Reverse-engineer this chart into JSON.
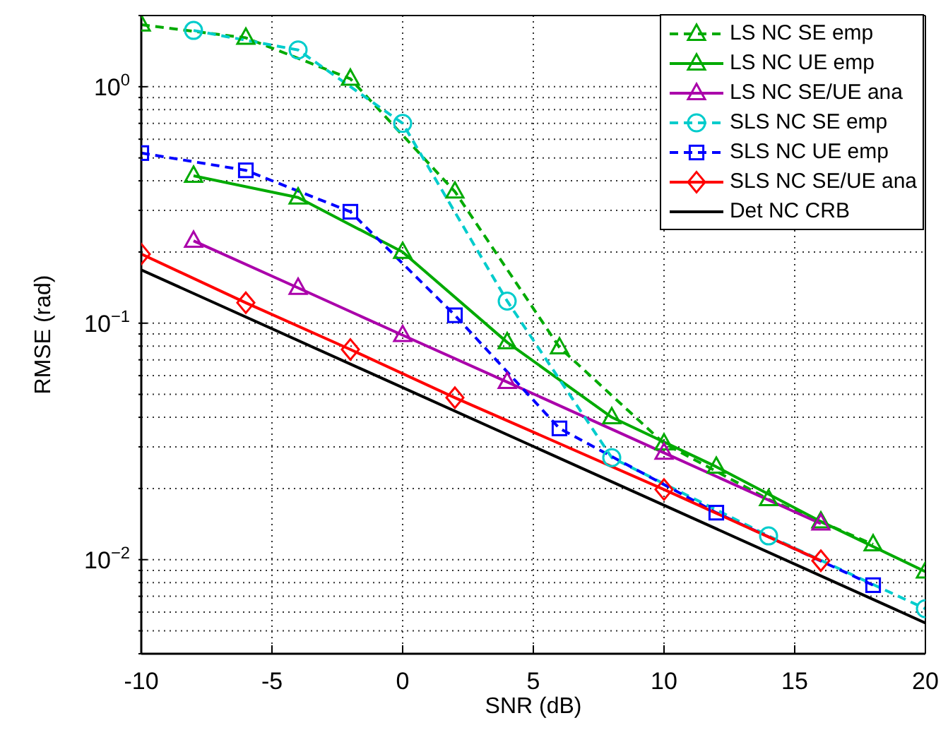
{
  "chart_data": {
    "type": "line",
    "xlabel": "SNR (dB)",
    "ylabel": "RMSE (rad)",
    "log": "y",
    "grid": true,
    "legend": "top right",
    "xlim": [
      -10,
      20
    ],
    "xticks": [
      -10,
      -5,
      0,
      5,
      10,
      15,
      20
    ],
    "ylim": [
      0.004,
      2
    ],
    "yticks": [
      {
        "value": 0.004,
        "label": null
      },
      {
        "value": 0.005,
        "label": null
      },
      {
        "value": 0.006,
        "label": null
      },
      {
        "value": 0.007,
        "label": null
      },
      {
        "value": 0.008,
        "label": null
      },
      {
        "value": 0.009,
        "label": null
      },
      {
        "value": 0.01,
        "label": "10$^{−2}$"
      },
      {
        "value": 0.02,
        "label": null
      },
      {
        "value": 0.03,
        "label": null
      },
      {
        "value": 0.04,
        "label": null
      },
      {
        "value": 0.05,
        "label": null
      },
      {
        "value": 0.06,
        "label": null
      },
      {
        "value": 0.07,
        "label": null
      },
      {
        "value": 0.08,
        "label": null
      },
      {
        "value": 0.09,
        "label": null
      },
      {
        "value": 0.1,
        "label": "10$^{−1}$"
      },
      {
        "value": 0.2,
        "label": null
      },
      {
        "value": 0.3,
        "label": null
      },
      {
        "value": 0.4,
        "label": null
      },
      {
        "value": 0.5,
        "label": null
      },
      {
        "value": 0.6,
        "label": null
      },
      {
        "value": 0.7,
        "label": null
      },
      {
        "value": 0.8,
        "label": null
      },
      {
        "value": 0.9,
        "label": null
      },
      {
        "value": 1,
        "label": "10$^{0}$"
      },
      {
        "value": 2,
        "label": null
      }
    ],
    "series": [
      {
        "name": "LS NC SE emp",
        "color": "#00aa00",
        "line_style": "dashed",
        "marker": "triangle",
        "x": [
          -10,
          -6,
          -2,
          2,
          6,
          10,
          14,
          18
        ],
        "values": [
          1.83,
          1.61,
          1.08,
          0.36,
          0.079,
          0.031,
          0.018,
          0.0116
        ]
      },
      {
        "name": "LS NC UE emp",
        "color": "#00aa00",
        "line_style": "solid",
        "marker": "triangle",
        "x": [
          -8,
          -4,
          0,
          4,
          8,
          12,
          16,
          20
        ],
        "values": [
          0.42,
          0.34,
          0.2,
          0.083,
          0.04,
          0.0247,
          0.0145,
          0.0089
        ]
      },
      {
        "name": "LS NC SE/UE ana",
        "color": "#aa00aa",
        "line_style": "solid",
        "marker": "triangle",
        "x": [
          -8,
          -4,
          0,
          4,
          10,
          16
        ],
        "values": [
          0.223,
          0.141,
          0.089,
          0.0564,
          0.0283,
          0.0142
        ]
      },
      {
        "name": "SLS NC SE emp",
        "color": "#00cccc",
        "line_style": "dashed",
        "marker": "circle",
        "x": [
          -8,
          -4,
          0,
          4,
          8,
          14,
          20
        ],
        "values": [
          1.73,
          1.43,
          0.7,
          0.124,
          0.027,
          0.0126,
          0.0062
        ]
      },
      {
        "name": "SLS NC UE emp",
        "color": "#0000ff",
        "line_style": "dashed",
        "marker": "square",
        "x": [
          -10,
          -6,
          -2,
          2,
          6,
          12,
          18
        ],
        "values": [
          0.524,
          0.443,
          0.296,
          0.108,
          0.0359,
          0.0158,
          0.0078
        ]
      },
      {
        "name": "SLS NC SE/UE ana",
        "color": "#ff0000",
        "line_style": "solid",
        "marker": "diamond",
        "x": [
          -10,
          -6,
          -2,
          2,
          10,
          16
        ],
        "values": [
          0.196,
          0.122,
          0.0774,
          0.0484,
          0.0198,
          0.0099
        ]
      },
      {
        "name": "Det NC CRB",
        "color": "#000000",
        "line_style": "solid",
        "marker": "none",
        "x": [
          -10,
          20
        ],
        "values": [
          0.168,
          0.0054
        ]
      }
    ]
  }
}
